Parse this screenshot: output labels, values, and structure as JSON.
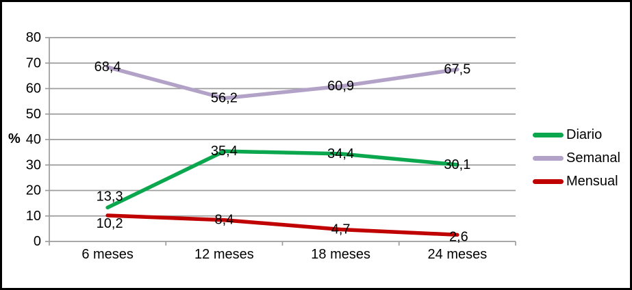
{
  "window": {
    "background": "#ffffff",
    "border_color": "#000000"
  },
  "chart_data": {
    "type": "line",
    "title": "",
    "categories": [
      "6 meses",
      "12 meses",
      "18 meses",
      "24 meses"
    ],
    "series": [
      {
        "name": "Diario",
        "color": "#0BA74E",
        "values": [
          13.3,
          35.4,
          34.4,
          30.1
        ],
        "point_labels": [
          "13,3",
          "35,4",
          "34,4",
          "30,1"
        ]
      },
      {
        "name": "Semanal",
        "color": "#B3A2C7",
        "values": [
          68.4,
          56.2,
          60.9,
          67.5
        ],
        "point_labels": [
          "68,4",
          "56,2",
          "60,9",
          "67,5"
        ]
      },
      {
        "name": "Mensual",
        "color": "#C00000",
        "values": [
          10.2,
          8.4,
          4.7,
          2.6
        ],
        "point_labels": [
          "10,2",
          "8,4",
          "4,7",
          "2,6"
        ]
      }
    ],
    "xlabel": "",
    "ylabel": "%",
    "ylim": [
      0,
      80
    ],
    "yticks": [
      0,
      10,
      20,
      30,
      40,
      50,
      60,
      70,
      80
    ],
    "grid": true,
    "legend_position": "right",
    "gridline_color": "#9C9C9C",
    "label_color": "#000000"
  }
}
